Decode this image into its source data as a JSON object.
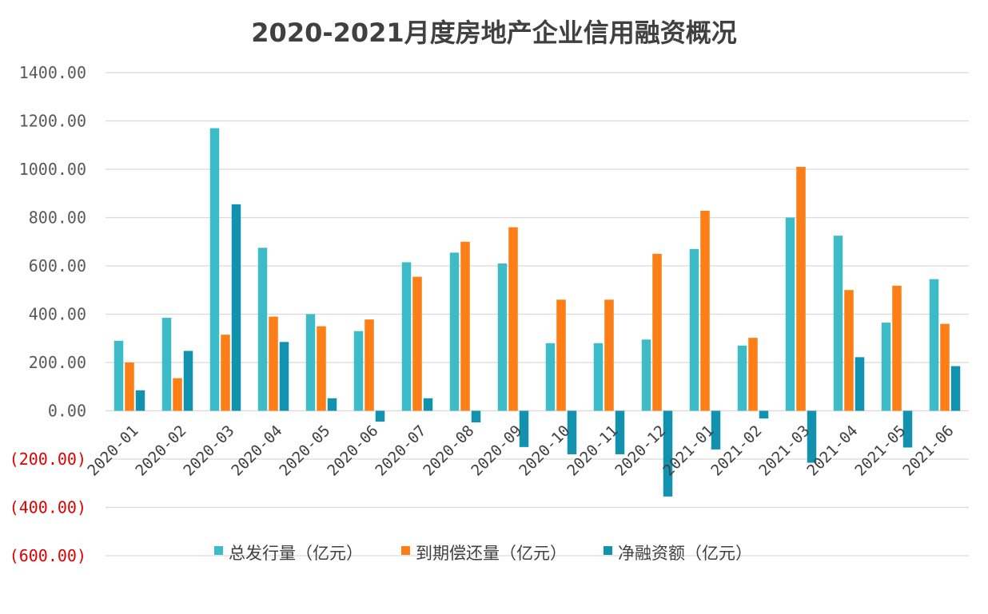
{
  "chart_data": {
    "type": "bar",
    "title": "2020-2021月度房地产企业信用融资概况",
    "categories": [
      "2020-01",
      "2020-02",
      "2020-03",
      "2020-04",
      "2020-05",
      "2020-06",
      "2020-07",
      "2020-08",
      "2020-09",
      "2020-10",
      "2020-11",
      "2020-12",
      "2021-01",
      "2021-02",
      "2021-03",
      "2021-04",
      "2021-05",
      "2021-06"
    ],
    "series": [
      {
        "name": "总发行量（亿元）",
        "color": "#3dbcc8",
        "values": [
          290,
          385,
          1170,
          675,
          400,
          330,
          615,
          655,
          610,
          280,
          280,
          295,
          670,
          270,
          800,
          725,
          365,
          545
        ]
      },
      {
        "name": "到期偿还量（亿元）",
        "color": "#fb7e17",
        "values": [
          200,
          135,
          315,
          390,
          350,
          378,
          555,
          700,
          760,
          460,
          460,
          650,
          828,
          302,
          1010,
          500,
          518,
          360
        ]
      },
      {
        "name": "净融资额（亿元）",
        "color": "#1392af",
        "values": [
          85,
          248,
          855,
          285,
          52,
          -45,
          52,
          -48,
          -150,
          -180,
          -180,
          -355,
          -160,
          -32,
          -215,
          222,
          -152,
          185
        ]
      }
    ],
    "ylim": [
      -600,
      1400
    ],
    "yticks": [
      "1400.00",
      "1200.00",
      "1000.00",
      "800.00",
      "600.00",
      "400.00",
      "200.00",
      "0.00",
      "(200.00)",
      "(400.00)",
      "(600.00)"
    ],
    "ytick_values": [
      1400,
      1200,
      1000,
      800,
      600,
      400,
      200,
      0,
      -200,
      -400,
      -600
    ],
    "negative_tick_color": "#e00000",
    "grid": true,
    "legend": "bottom-center"
  }
}
